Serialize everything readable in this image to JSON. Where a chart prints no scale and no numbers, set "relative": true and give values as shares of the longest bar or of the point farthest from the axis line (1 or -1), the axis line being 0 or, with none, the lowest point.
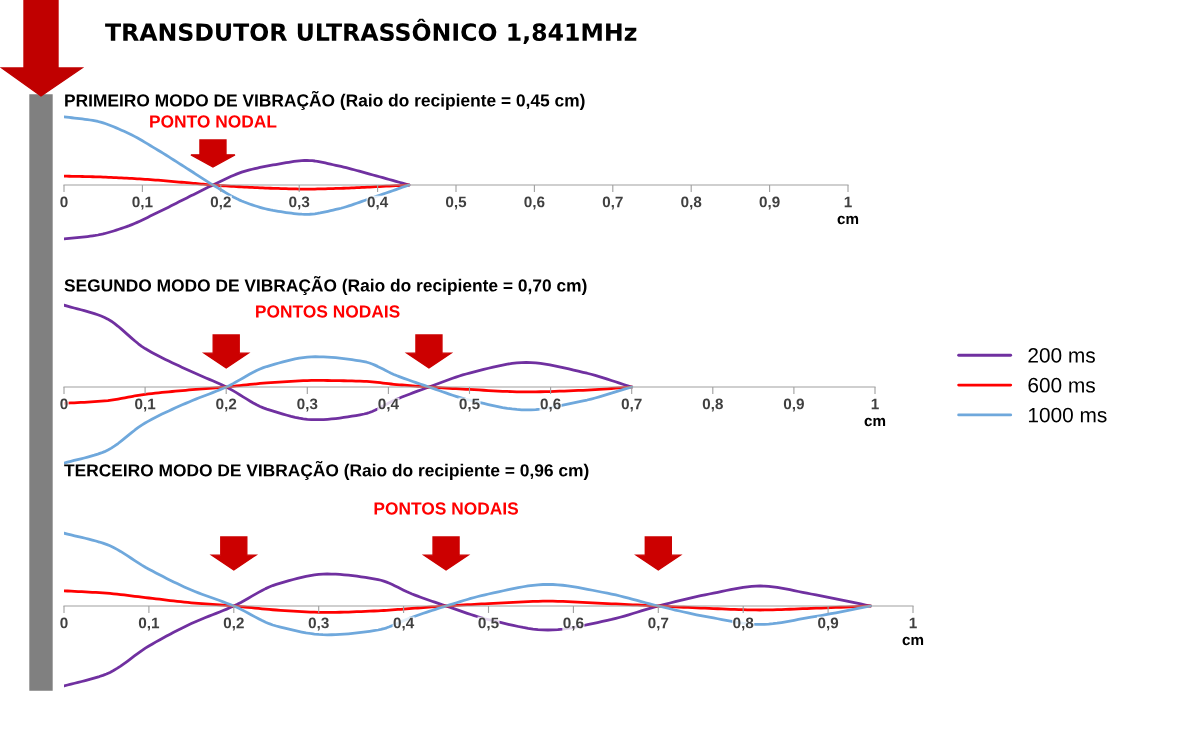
{
  "chart_data": [
    {
      "type": "line",
      "title": "TRANSDUTOR ULTRASSÔNICO 1,841MHz",
      "subtitle": "PRIMEIRO MODO DE VIBRAÇÃO (Raio do recipiente = 0,45 cm)",
      "relative": true,
      "xlabel": "cm",
      "xlim": [
        0,
        1
      ],
      "xticks": [
        0,
        {
          "value": 0.1,
          "label": "0,1"
        },
        {
          "value": 0.2,
          "label": "0,2"
        },
        {
          "value": 0.3,
          "label": "0,3"
        },
        {
          "value": 0.4,
          "label": "0,4"
        },
        {
          "value": 0.5,
          "label": "0,5"
        },
        {
          "value": 0.6,
          "label": "0,6"
        },
        {
          "value": 0.7,
          "label": "0,7"
        },
        {
          "value": 0.8,
          "label": "0,8"
        },
        {
          "value": 0.9,
          "label": "0,9"
        },
        1
      ],
      "x": [
        0,
        0.04,
        0.08,
        0.12,
        0.16,
        0.19,
        0.23,
        0.27,
        0.31,
        0.35,
        0.39,
        0.44
      ],
      "annotations": [
        "PONTO NODAL"
      ],
      "series": [
        {
          "color": "#7030a0",
          "values": [
            -0.79,
            -0.74,
            -0.61,
            -0.4,
            -0.17,
            0,
            0.2,
            0.3,
            0.36,
            0.28,
            0.16,
            0
          ]
        },
        {
          "color": "#ff0000",
          "values": [
            0.13,
            0.12,
            0.1,
            0.07,
            0.03,
            0,
            -0.03,
            -0.05,
            -0.06,
            -0.05,
            -0.03,
            0
          ]
        },
        {
          "color": "#6fa8dc",
          "values": [
            1,
            0.94,
            0.77,
            0.51,
            0.22,
            0,
            -0.25,
            -0.38,
            -0.43,
            -0.35,
            -0.2,
            0
          ]
        }
      ]
    },
    {
      "type": "line",
      "subtitle": "SEGUNDO MODO DE VIBRAÇÃO (Raio do recipiente = 0,70 cm)",
      "relative": true,
      "xlabel": "cm",
      "xlim": [
        0,
        1
      ],
      "legend": "right",
      "xticks": [
        0,
        {
          "value": 0.1,
          "label": "0,1"
        },
        {
          "value": 0.2,
          "label": "0,2"
        },
        {
          "value": 0.3,
          "label": "0,3"
        },
        {
          "value": 0.4,
          "label": "0,4"
        },
        {
          "value": 0.5,
          "label": "0,5"
        },
        {
          "value": 0.6,
          "label": "0,6"
        },
        {
          "value": 0.7,
          "label": "0,7"
        },
        {
          "value": 0.8,
          "label": "0,8"
        },
        {
          "value": 0.9,
          "label": "0,9"
        },
        1
      ],
      "x": [
        0,
        0.05,
        0.1,
        0.15,
        0.2,
        0.25,
        0.31,
        0.37,
        0.41,
        0.45,
        0.5,
        0.57,
        0.64,
        0.7
      ],
      "annotations": [
        "PONTOS NODAIS"
      ],
      "series": [
        {
          "name": "200 ms",
          "color": "#7030a0",
          "values": [
            1,
            0.85,
            0.47,
            0.22,
            0,
            -0.27,
            -0.4,
            -0.33,
            -0.15,
            0,
            0.17,
            0.3,
            0.18,
            0
          ]
        },
        {
          "name": "600 ms",
          "color": "#ff0000",
          "values": [
            -0.2,
            -0.17,
            -0.09,
            -0.04,
            0,
            0.05,
            0.08,
            0.07,
            0.03,
            0,
            -0.03,
            -0.06,
            -0.04,
            0
          ]
        },
        {
          "name": "1000 ms",
          "color": "#6fa8dc",
          "values": [
            -0.93,
            -0.79,
            -0.44,
            -0.2,
            0,
            0.25,
            0.37,
            0.31,
            0.14,
            0,
            -0.16,
            -0.28,
            -0.17,
            0
          ]
        }
      ]
    },
    {
      "type": "line",
      "subtitle": "TERCEIRO MODO DE VIBRAÇÃO (Raio do recipiente = 0,96 cm)",
      "relative": true,
      "xlabel": "cm",
      "xlim": [
        0,
        1
      ],
      "xticks": [
        0,
        {
          "value": 0.1,
          "label": "0,1"
        },
        {
          "value": 0.2,
          "label": "0,2"
        },
        {
          "value": 0.3,
          "label": "0,3"
        },
        {
          "value": 0.4,
          "label": "0,4"
        },
        {
          "value": 0.5,
          "label": "0,5"
        },
        {
          "value": 0.6,
          "label": "0,6"
        },
        {
          "value": 0.7,
          "label": "0,7"
        },
        {
          "value": 0.8,
          "label": "0,8"
        },
        {
          "value": 0.9,
          "label": "0,9"
        },
        1
      ],
      "x": [
        0,
        0.05,
        0.1,
        0.15,
        0.2,
        0.25,
        0.31,
        0.37,
        0.41,
        0.45,
        0.5,
        0.57,
        0.64,
        0.7,
        0.76,
        0.82,
        0.88,
        0.95
      ],
      "annotations": [
        "PONTOS NODAIS"
      ],
      "series": [
        {
          "color": "#7030a0",
          "values": [
            -1,
            -0.85,
            -0.5,
            -0.22,
            0,
            0.27,
            0.4,
            0.33,
            0.15,
            0,
            -0.17,
            -0.3,
            -0.18,
            0,
            0.15,
            0.25,
            0.15,
            0
          ]
        },
        {
          "color": "#ff0000",
          "values": [
            0.19,
            0.16,
            0.1,
            0.04,
            0,
            -0.05,
            -0.08,
            -0.06,
            -0.03,
            0,
            0.03,
            0.06,
            0.03,
            0,
            -0.03,
            -0.05,
            -0.03,
            0
          ]
        },
        {
          "color": "#6fa8dc",
          "values": [
            0.91,
            0.77,
            0.46,
            0.2,
            0,
            -0.25,
            -0.36,
            -0.3,
            -0.14,
            0,
            0.15,
            0.27,
            0.16,
            0,
            -0.14,
            -0.23,
            -0.14,
            0
          ]
        }
      ]
    }
  ]
}
